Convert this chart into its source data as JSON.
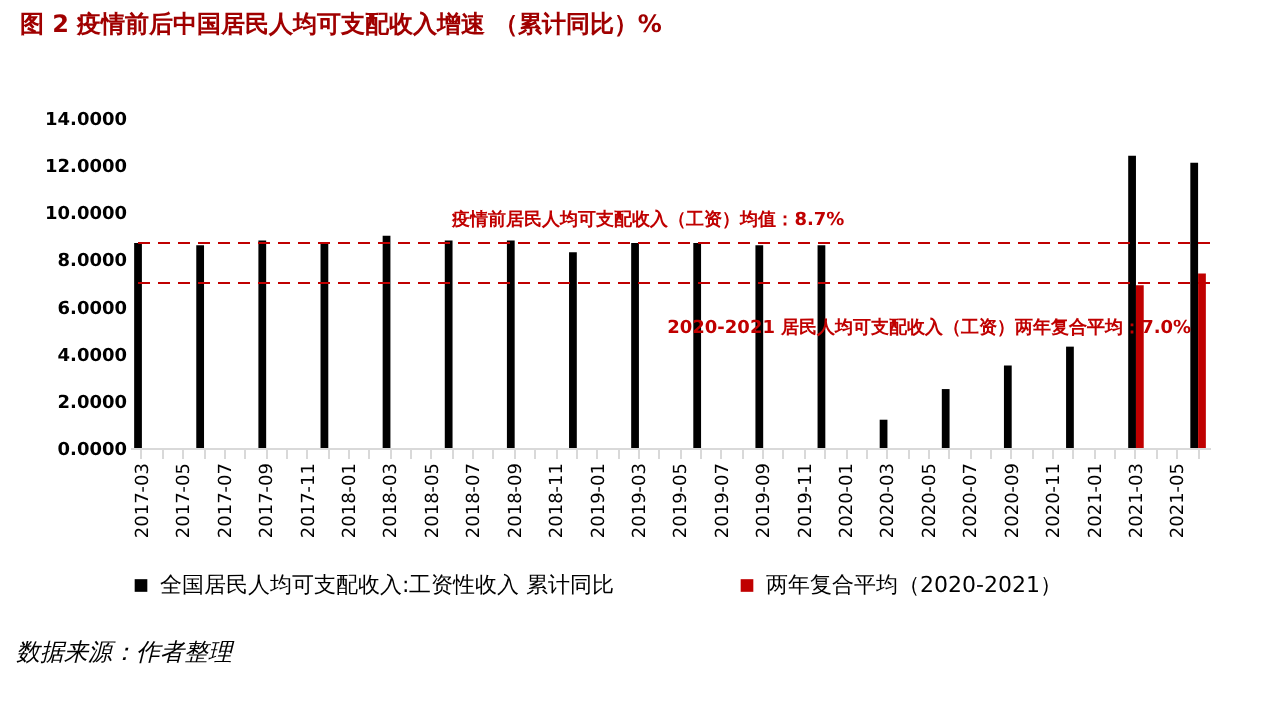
{
  "chart_data": {
    "type": "bar",
    "title": "图 2 疫情前后中国居民人均可支配收入增速 （累计同比）%",
    "categories": [
      "2017-03",
      null,
      "2017-05",
      null,
      "2017-07",
      null,
      "2017-09",
      null,
      "2017-11",
      null,
      "2018-01",
      null,
      "2018-03",
      null,
      "2018-05",
      null,
      "2018-07",
      null,
      "2018-09",
      null,
      "2018-11",
      null,
      "2019-01",
      null,
      "2019-03",
      null,
      "2019-05",
      null,
      "2019-07",
      null,
      "2019-09",
      null,
      "2019-11",
      null,
      "2020-01",
      null,
      "2020-03",
      null,
      "2020-05",
      null,
      "2020-07",
      null,
      "2020-09",
      null,
      "2020-11",
      null,
      "2021-01",
      null,
      "2021-03",
      null,
      "2021-05",
      null
    ],
    "series": [
      {
        "name": "全国居民人均可支配收入:工资性收入 累计同比",
        "color": "#000000",
        "values": [
          8.7,
          null,
          null,
          8.6,
          null,
          null,
          8.8,
          null,
          null,
          8.7,
          null,
          null,
          9.0,
          null,
          null,
          8.8,
          null,
          null,
          8.8,
          null,
          null,
          8.3,
          null,
          null,
          8.7,
          null,
          null,
          8.7,
          null,
          null,
          8.6,
          null,
          null,
          8.6,
          null,
          null,
          1.2,
          null,
          null,
          2.5,
          null,
          null,
          3.5,
          null,
          null,
          4.3,
          null,
          null,
          12.4,
          null,
          null,
          12.1
        ]
      },
      {
        "name": "两年复合平均（2020-2021）",
        "color": "#c00000",
        "values": [
          null,
          null,
          null,
          null,
          null,
          null,
          null,
          null,
          null,
          null,
          null,
          null,
          null,
          null,
          null,
          null,
          null,
          null,
          null,
          null,
          null,
          null,
          null,
          null,
          null,
          null,
          null,
          null,
          null,
          null,
          null,
          null,
          null,
          null,
          null,
          null,
          null,
          null,
          null,
          null,
          null,
          null,
          null,
          null,
          null,
          null,
          null,
          null,
          6.9,
          null,
          null,
          7.4
        ]
      }
    ],
    "ylim": [
      0,
      14
    ],
    "yticks": [
      {
        "value": 0,
        "label": "0.0000"
      },
      {
        "value": 2,
        "label": "2.0000"
      },
      {
        "value": 4,
        "label": "4.0000"
      },
      {
        "value": 6,
        "label": "6.0000"
      },
      {
        "value": 8,
        "label": "8.0000"
      },
      {
        "value": 10,
        "label": "10.0000"
      },
      {
        "value": 12,
        "label": "12.0000"
      },
      {
        "value": 14,
        "label": "14.0000"
      }
    ],
    "ref_lines": [
      {
        "axis": "y",
        "value": 8.7,
        "label": "疫情前居民人均可支配收入（工资）均值：8.7%",
        "color": "#c00000",
        "line_style": "dashed"
      },
      {
        "axis": "y",
        "value": 7.0,
        "label": "2020-2021 居民人均可支配收入（工资）两年复合平均：7.0%",
        "color": "#c00000",
        "line_style": "dashed"
      }
    ],
    "annotations": [
      "数据来源：作者整理"
    ],
    "legend": "bottom",
    "grid": false
  }
}
